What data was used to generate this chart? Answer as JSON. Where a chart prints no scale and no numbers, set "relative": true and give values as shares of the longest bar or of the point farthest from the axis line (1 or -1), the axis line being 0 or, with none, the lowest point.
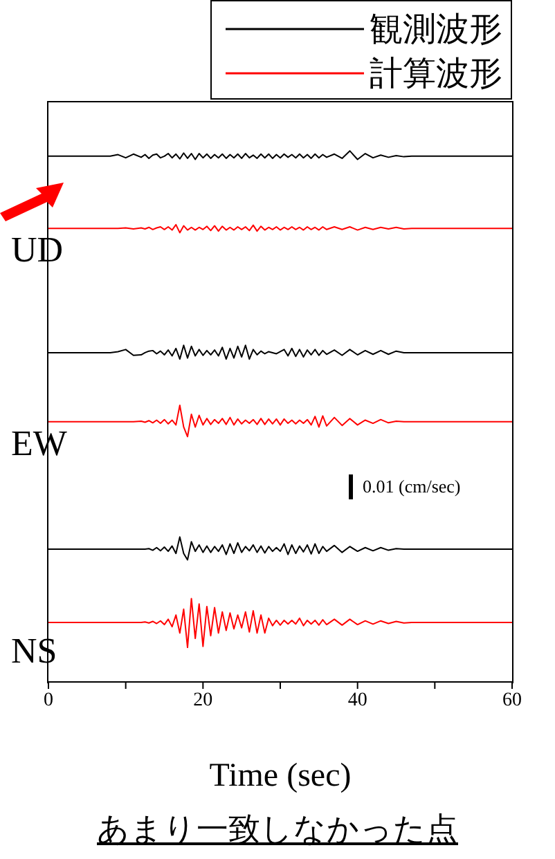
{
  "chart_data": {
    "type": "line",
    "relative": true,
    "xlabel": "Time (sec)",
    "legend": "top right",
    "xlim": [
      0,
      60
    ],
    "xticks": [
      0,
      {
        "value": 10,
        "label": null
      },
      20,
      {
        "value": 30,
        "label": null
      },
      40,
      {
        "value": 50,
        "label": null
      },
      60
    ],
    "x": [
      0,
      4,
      8,
      9,
      10,
      11,
      12,
      12.5,
      13,
      13.5,
      14,
      14.5,
      15,
      15.5,
      16,
      16.5,
      17,
      17.5,
      18,
      18.5,
      19,
      19.5,
      20,
      20.5,
      21,
      21.5,
      22,
      22.5,
      23,
      23.5,
      24,
      24.5,
      25,
      25.5,
      26,
      26.5,
      27,
      27.5,
      28,
      28.5,
      29,
      29.5,
      30,
      30.5,
      31,
      31.5,
      32,
      32.5,
      33,
      33.5,
      34,
      34.5,
      35,
      35.5,
      36,
      37,
      38,
      39,
      40,
      41,
      42,
      43,
      44,
      45,
      46,
      47,
      48,
      52,
      56,
      60
    ],
    "series": [
      {
        "name": "観測波形",
        "color": "#000000",
        "values": [
          0.99,
          0.99,
          0.99,
          0.993,
          0.987,
          0.994,
          0.988,
          0.993,
          0.986,
          0.992,
          0.994,
          0.987,
          0.99,
          0.995,
          0.987,
          0.994,
          0.985,
          0.996,
          0.986,
          0.995,
          0.984,
          0.995,
          0.987,
          0.994,
          0.986,
          0.993,
          0.987,
          0.994,
          0.986,
          0.993,
          0.987,
          0.994,
          0.986,
          0.995,
          0.987,
          0.992,
          0.986,
          0.994,
          0.987,
          0.994,
          0.986,
          0.993,
          0.987,
          0.994,
          0.988,
          0.993,
          0.987,
          0.994,
          0.987,
          0.993,
          0.986,
          0.994,
          0.987,
          0.993,
          0.988,
          0.994,
          0.986,
          1.0,
          0.984,
          0.995,
          0.987,
          0.992,
          0.988,
          0.991,
          0.989,
          0.99,
          0.99,
          0.99,
          0.99,
          0.99
        ]
      },
      {
        "name": "計算波形",
        "color": "#ff0000",
        "values": [
          0.854,
          0.854,
          0.854,
          0.854,
          0.855,
          0.853,
          0.855,
          0.853,
          0.856,
          0.852,
          0.855,
          0.857,
          0.852,
          0.857,
          0.851,
          0.861,
          0.846,
          0.859,
          0.851,
          0.856,
          0.851,
          0.856,
          0.852,
          0.858,
          0.85,
          0.859,
          0.849,
          0.858,
          0.851,
          0.856,
          0.851,
          0.857,
          0.852,
          0.857,
          0.85,
          0.86,
          0.849,
          0.858,
          0.851,
          0.856,
          0.852,
          0.857,
          0.851,
          0.856,
          0.852,
          0.857,
          0.852,
          0.856,
          0.851,
          0.857,
          0.852,
          0.856,
          0.851,
          0.857,
          0.852,
          0.857,
          0.852,
          0.857,
          0.851,
          0.856,
          0.852,
          0.856,
          0.853,
          0.856,
          0.853,
          0.854,
          0.854,
          0.854,
          0.854,
          0.854
        ]
      },
      {
        "color": "#000000",
        "values": [
          0.62,
          0.62,
          0.62,
          0.622,
          0.626,
          0.615,
          0.616,
          0.62,
          0.623,
          0.624,
          0.618,
          0.623,
          0.616,
          0.625,
          0.614,
          0.628,
          0.608,
          0.634,
          0.61,
          0.632,
          0.614,
          0.626,
          0.615,
          0.624,
          0.616,
          0.625,
          0.614,
          0.63,
          0.608,
          0.628,
          0.61,
          0.632,
          0.612,
          0.634,
          0.608,
          0.626,
          0.616,
          0.623,
          0.618,
          0.622,
          0.62,
          0.618,
          0.622,
          0.626,
          0.614,
          0.628,
          0.613,
          0.626,
          0.612,
          0.625,
          0.616,
          0.626,
          0.615,
          0.624,
          0.617,
          0.625,
          0.615,
          0.626,
          0.616,
          0.624,
          0.617,
          0.624,
          0.617,
          0.623,
          0.62,
          0.62,
          0.62,
          0.62,
          0.62,
          0.62
        ]
      },
      {
        "color": "#ff0000",
        "values": [
          0.49,
          0.49,
          0.49,
          0.49,
          0.49,
          0.49,
          0.491,
          0.489,
          0.492,
          0.488,
          0.493,
          0.487,
          0.494,
          0.486,
          0.493,
          0.484,
          0.521,
          0.48,
          0.462,
          0.504,
          0.48,
          0.502,
          0.484,
          0.496,
          0.485,
          0.494,
          0.487,
          0.496,
          0.485,
          0.498,
          0.484,
          0.495,
          0.486,
          0.493,
          0.487,
          0.494,
          0.485,
          0.496,
          0.485,
          0.495,
          0.486,
          0.495,
          0.484,
          0.495,
          0.487,
          0.493,
          0.486,
          0.493,
          0.487,
          0.494,
          0.484,
          0.5,
          0.48,
          0.501,
          0.482,
          0.498,
          0.483,
          0.496,
          0.484,
          0.493,
          0.487,
          0.494,
          0.488,
          0.491,
          0.49,
          0.49,
          0.49,
          0.49,
          0.49,
          0.49
        ]
      },
      {
        "color": "#000000",
        "values": [
          0.25,
          0.25,
          0.25,
          0.25,
          0.25,
          0.25,
          0.25,
          0.25,
          0.251,
          0.248,
          0.253,
          0.247,
          0.254,
          0.246,
          0.256,
          0.242,
          0.273,
          0.242,
          0.23,
          0.264,
          0.246,
          0.258,
          0.244,
          0.256,
          0.244,
          0.255,
          0.246,
          0.258,
          0.24,
          0.26,
          0.242,
          0.262,
          0.244,
          0.255,
          0.247,
          0.258,
          0.244,
          0.256,
          0.243,
          0.255,
          0.246,
          0.253,
          0.246,
          0.26,
          0.24,
          0.258,
          0.242,
          0.256,
          0.245,
          0.258,
          0.241,
          0.26,
          0.242,
          0.255,
          0.246,
          0.257,
          0.244,
          0.255,
          0.246,
          0.253,
          0.247,
          0.253,
          0.248,
          0.251,
          0.25,
          0.25,
          0.25,
          0.25,
          0.25,
          0.25
        ]
      },
      {
        "color": "#ff0000",
        "values": [
          0.112,
          0.112,
          0.112,
          0.112,
          0.112,
          0.112,
          0.112,
          0.113,
          0.111,
          0.114,
          0.11,
          0.115,
          0.108,
          0.118,
          0.104,
          0.126,
          0.092,
          0.137,
          0.065,
          0.157,
          0.082,
          0.147,
          0.067,
          0.142,
          0.087,
          0.14,
          0.092,
          0.132,
          0.097,
          0.13,
          0.1,
          0.126,
          0.102,
          0.132,
          0.094,
          0.134,
          0.092,
          0.126,
          0.092,
          0.12,
          0.106,
          0.116,
          0.107,
          0.116,
          0.109,
          0.116,
          0.109,
          0.12,
          0.106,
          0.116,
          0.109,
          0.116,
          0.107,
          0.117,
          0.108,
          0.118,
          0.107,
          0.118,
          0.108,
          0.115,
          0.109,
          0.115,
          0.11,
          0.114,
          0.111,
          0.112,
          0.112,
          0.112,
          0.112,
          0.112
        ]
      }
    ],
    "annotations": [
      "UD",
      "EW",
      "NS",
      "0.01 (cm/sec)",
      "あまり一致しなかった点"
    ]
  }
}
